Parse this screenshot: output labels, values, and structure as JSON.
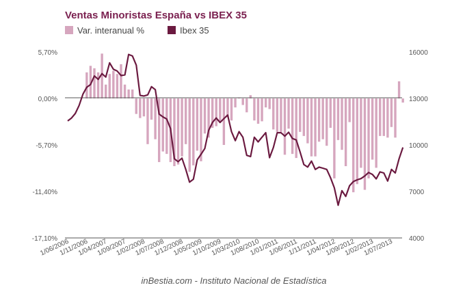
{
  "chart_data": {
    "type": "bar+line",
    "title": "Ventas Minoristas España vs IBEX 35",
    "source": "inBestia.com - Instituto Nacional de Estadística",
    "legend_position": "top-left",
    "grid": false,
    "colors": {
      "title": "#7b2150",
      "bars": "#d6a6be",
      "line": "#6b1a40"
    },
    "x_tick_labels": [
      "1/06/2006",
      "1/11/2006",
      "1/04/2007",
      "1/09/2007",
      "1/02/2008",
      "1/07/2008",
      "1/12/2008",
      "1/05/2009",
      "1/10/2009",
      "1/03/2010",
      "1/08/2010",
      "1/01/2011",
      "1/06/2011",
      "1/11/2011",
      "1/04/2012",
      "1/09/2012",
      "1/02/2013",
      "1/07/2013"
    ],
    "x_range": [
      "2006-06",
      "2013-10"
    ],
    "y_left": {
      "ticks": [
        "5,70%",
        "0,00%",
        "-5,70%",
        "-11,40%",
        "-17,10%"
      ],
      "range": [
        -17.1,
        5.7
      ]
    },
    "y_right": {
      "ticks": [
        "16000",
        "13000",
        "10000",
        "7000",
        "4000"
      ],
      "range": [
        4000,
        16000
      ]
    },
    "series": [
      {
        "name": "Var. interanual %",
        "type": "bar",
        "axis": "left",
        "values": [
          null,
          null,
          null,
          null,
          null,
          3.2,
          4.0,
          3.7,
          3.2,
          5.5,
          1.7,
          3.0,
          3.4,
          3.0,
          4.2,
          1.7,
          1.1,
          1.1,
          -1.9,
          -2.4,
          -2.2,
          -5.6,
          -2.6,
          -5.0,
          -7.8,
          -6.5,
          -6.8,
          -7.8,
          -8.3,
          -8.1,
          -7.1,
          -5.6,
          -9.0,
          -8.2,
          -6.4,
          -7.7,
          -4.3,
          -4.8,
          -3.6,
          -3.4,
          -2.8,
          -5.7,
          -2.3,
          -2.7,
          -1.1,
          0.1,
          -0.8,
          -1.7,
          0.4,
          -2.7,
          -3.1,
          -2.8,
          -1.1,
          -1.3,
          -3.8,
          -4.1,
          -4.1,
          -6.9,
          -3.7,
          -6.8,
          -7.3,
          -4.1,
          -4.6,
          -5.5,
          -7.1,
          -7.1,
          -5.3,
          -5.0,
          -5.8,
          -3.6,
          -9.8,
          -5.1,
          -6.3,
          -8.3,
          -2.9,
          -11.5,
          -10.5,
          -8.5,
          -11.2,
          -9.8,
          -7.5,
          -8.5,
          -4.6,
          -4.6,
          -4.8,
          -3.5,
          -4.8,
          2.1,
          -0.5
        ]
      },
      {
        "name": "Ibex 35",
        "type": "line",
        "axis": "right",
        "values": [
          11550,
          11740,
          12030,
          12550,
          13280,
          13720,
          13900,
          14450,
          14230,
          14600,
          14380,
          15300,
          14890,
          14770,
          14480,
          14520,
          15840,
          15740,
          15150,
          13200,
          13160,
          13230,
          13760,
          13570,
          11990,
          11810,
          11670,
          11050,
          9110,
          8920,
          9150,
          8420,
          7600,
          7790,
          9040,
          9400,
          9770,
          10940,
          11450,
          11740,
          11450,
          11700,
          11930,
          10860,
          10280,
          10860,
          10500,
          9330,
          9250,
          10500,
          10200,
          10500,
          10790,
          9180,
          9840,
          10790,
          10790,
          10570,
          10820,
          10420,
          10320,
          9550,
          8740,
          8570,
          8960,
          8420,
          8570,
          8500,
          8420,
          7890,
          7240,
          6110,
          7050,
          6680,
          7370,
          7640,
          7750,
          7830,
          8000,
          8220,
          8100,
          7810,
          8260,
          8190,
          7670,
          8420,
          8190,
          9110,
          9840
        ]
      }
    ]
  }
}
